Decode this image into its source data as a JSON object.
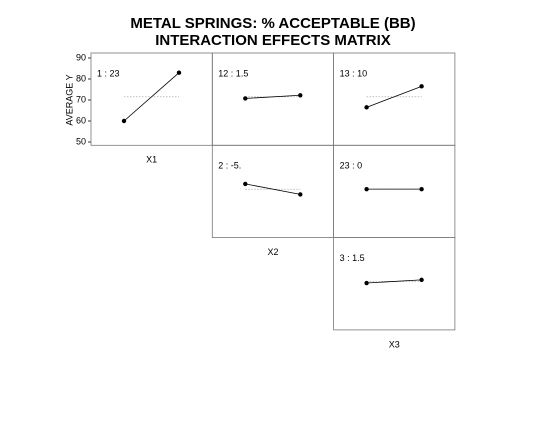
{
  "title": [
    "METAL SPRINGS: % ACCEPTABLE (BB)",
    "INTERACTION EFFECTS MATRIX"
  ],
  "ylabel": "AVERAGE Y",
  "ylim": [
    50,
    90
  ],
  "yticks": [
    50,
    60,
    70,
    80,
    90
  ],
  "mean": 71.5,
  "factors": [
    "X1",
    "X2",
    "X3"
  ],
  "chart_data": [
    {
      "type": "line",
      "label": "1 : 23",
      "values": [
        60,
        83
      ]
    },
    {
      "type": "line",
      "label": "12 : 1.5",
      "values": [
        70.75,
        72.25
      ]
    },
    {
      "type": "line",
      "label": "13 : 10",
      "values": [
        66.5,
        76.5
      ]
    },
    {
      "type": "line",
      "label": "2 : -5.",
      "values": [
        74,
        69
      ]
    },
    {
      "type": "line",
      "label": "23 : 0",
      "values": [
        71.5,
        71.5
      ]
    },
    {
      "type": "line",
      "label": "3 : 1.5",
      "values": [
        70.75,
        72.25
      ]
    }
  ]
}
